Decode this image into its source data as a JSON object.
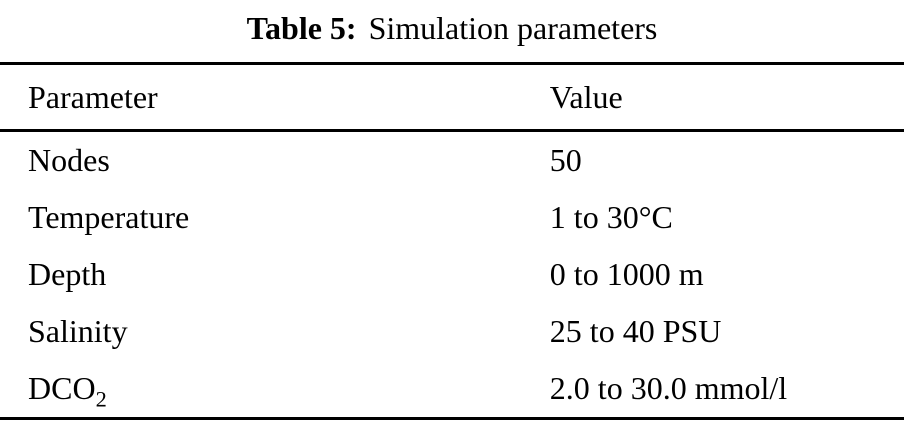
{
  "title": {
    "label": "Table 5:",
    "caption": "Simulation parameters"
  },
  "table": {
    "headers": {
      "parameter": "Parameter",
      "value": "Value"
    },
    "rows": [
      {
        "param": "Nodes",
        "param_sub": "",
        "value": "50"
      },
      {
        "param": "Temperature",
        "param_sub": "",
        "value": "1 to 30°C"
      },
      {
        "param": "Depth",
        "param_sub": "",
        "value": "0 to 1000 m"
      },
      {
        "param": "Salinity",
        "param_sub": "",
        "value": "25 to 40 PSU"
      },
      {
        "param": "DCO",
        "param_sub": "2",
        "value": "2.0 to 30.0 mmol/l"
      }
    ]
  }
}
